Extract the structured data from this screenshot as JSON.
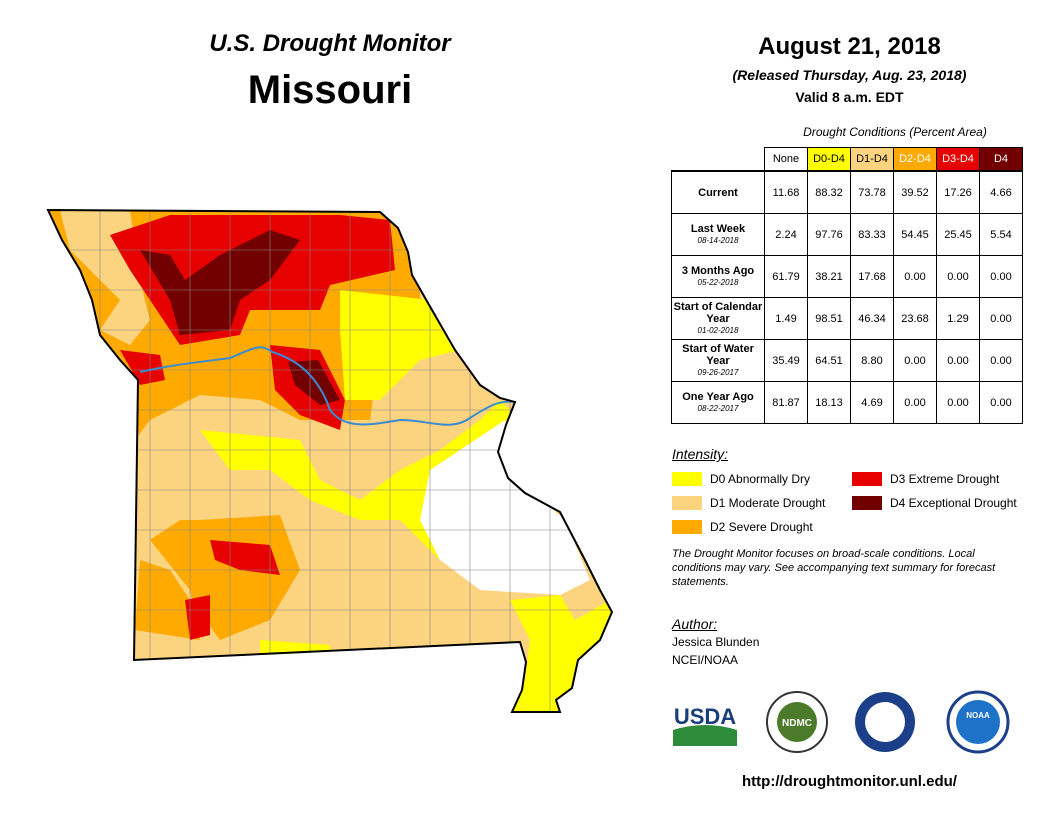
{
  "header": {
    "title": "U.S. Drought Monitor",
    "state": "Missouri",
    "date": "August 21, 2018",
    "released": "(Released Thursday, Aug. 23, 2018)",
    "valid": "Valid 8 a.m. EDT"
  },
  "table": {
    "caption": "Drought Conditions (Percent Area)",
    "columns": [
      {
        "label": "None",
        "color": "#ffffff",
        "text_color": "#000000"
      },
      {
        "label": "D0-D4",
        "color": "#ffff00",
        "text_color": "#000000"
      },
      {
        "label": "D1-D4",
        "color": "#fcd37f",
        "text_color": "#000000"
      },
      {
        "label": "D2-D4",
        "color": "#ffaa00",
        "text_color": "#ffffff"
      },
      {
        "label": "D3-D4",
        "color": "#e60000",
        "text_color": "#ffffff"
      },
      {
        "label": "D4",
        "color": "#730000",
        "text_color": "#ffffff"
      }
    ],
    "rows": [
      {
        "label": "Current",
        "values": [
          "11.68",
          "88.32",
          "73.78",
          "39.52",
          "17.26",
          "4.66"
        ]
      },
      {
        "label": "Last Week",
        "date": "08-14-2018",
        "values": [
          "2.24",
          "97.76",
          "83.33",
          "54.45",
          "25.45",
          "5.54"
        ]
      },
      {
        "label": "3 Months Ago",
        "date": "05-22-2018",
        "values": [
          "61.79",
          "38.21",
          "17.68",
          "0.00",
          "0.00",
          "0.00"
        ]
      },
      {
        "label": "Start of Calendar Year",
        "date": "01-02-2018",
        "values": [
          "1.49",
          "98.51",
          "46.34",
          "23.68",
          "1.29",
          "0.00"
        ]
      },
      {
        "label": "Start of Water Year",
        "date": "09-26-2017",
        "values": [
          "35.49",
          "64.51",
          "8.80",
          "0.00",
          "0.00",
          "0.00"
        ]
      },
      {
        "label": "One Year Ago",
        "date": "08-22-2017",
        "values": [
          "81.87",
          "18.13",
          "4.69",
          "0.00",
          "0.00",
          "0.00"
        ]
      }
    ]
  },
  "legend": {
    "title": "Intensity:",
    "items": [
      {
        "label": "D0 Abnormally Dry",
        "color": "#ffff00"
      },
      {
        "label": "D3 Extreme Drought",
        "color": "#e60000"
      },
      {
        "label": "D1 Moderate Drought",
        "color": "#fcd37f"
      },
      {
        "label": "D4 Exceptional Drought",
        "color": "#730000"
      },
      {
        "label": "D2 Severe Drought",
        "color": "#ffaa00"
      }
    ]
  },
  "note": "The Drought Monitor focuses on broad-scale conditions. Local conditions may vary. See accompanying text summary for forecast statements.",
  "author": {
    "heading": "Author:",
    "name": "Jessica Blunden",
    "org": "NCEI/NOAA"
  },
  "logos": [
    "USDA",
    "NDMC",
    "NOAA"
  ],
  "url": "http://droughtmonitor.unl.edu/"
}
